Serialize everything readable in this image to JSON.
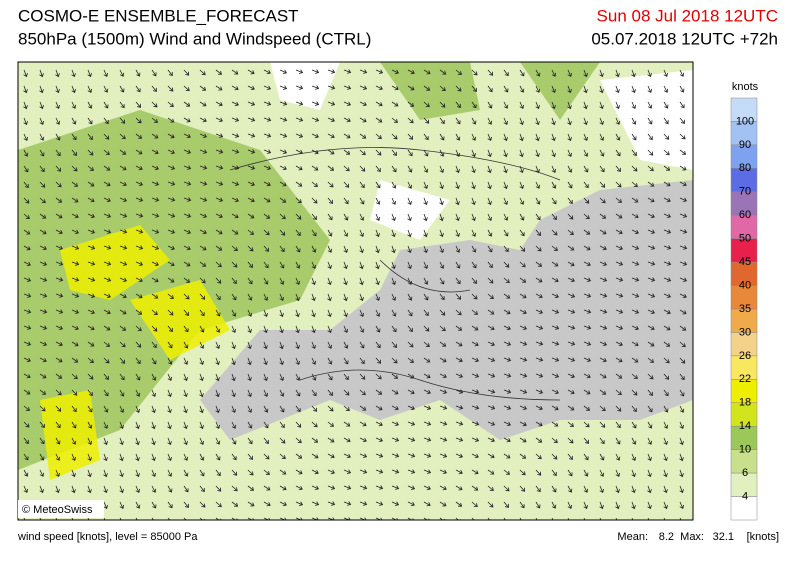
{
  "header": {
    "title": "COSMO-E ENSEMBLE_FORECAST",
    "subtitle": "850hPa (1500m) Wind and Windspeed (CTRL)",
    "valid_time": "Sun 08 Jul 2018 12UTC",
    "run_time": "05.07.2018 12UTC +72h"
  },
  "colorbar": {
    "unit": "knots",
    "levels": [
      100,
      90,
      80,
      70,
      60,
      50,
      45,
      40,
      35,
      30,
      26,
      22,
      18,
      14,
      10,
      6,
      4
    ],
    "colors": [
      "#c4dcf8",
      "#a2c2f4",
      "#7ea2ee",
      "#5c6ce4",
      "#9a74b6",
      "#e068a6",
      "#e8204c",
      "#e0682e",
      "#e88838",
      "#f0aa4a",
      "#f4d28a",
      "#f8e860",
      "#eeee00",
      "#d2e41c",
      "#9cc85a",
      "#c8e08c",
      "#e2efbe",
      "#ffffff"
    ]
  },
  "map": {
    "credit": "© MeteoSwiss"
  },
  "footer": {
    "caption": "wind speed [knots], level = 85000 Pa",
    "stats": {
      "mean_label": "Mean:",
      "mean": 8.2,
      "max_label": "Max:",
      "max": 32.1,
      "unit": "[knots]"
    }
  }
}
